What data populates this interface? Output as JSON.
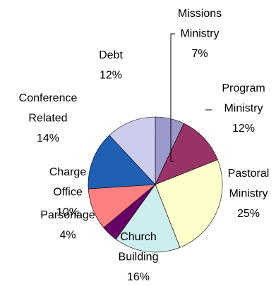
{
  "chart_data": {
    "type": "pie",
    "title": "",
    "slices": [
      {
        "label": [
          "Missions",
          "Ministry"
        ],
        "percent_label": "7%",
        "value": 7,
        "color": "#9999cc"
      },
      {
        "label": [
          "Program",
          "Ministry"
        ],
        "percent_label": "12%",
        "value": 12,
        "color": "#993366"
      },
      {
        "label": [
          "Pastoral",
          "Ministry"
        ],
        "percent_label": "25%",
        "value": 25,
        "color": "#ffffcc"
      },
      {
        "label": [
          "Church",
          "Building"
        ],
        "percent_label": "16%",
        "value": 16,
        "color": "#cceeee"
      },
      {
        "label": [
          "Parsonage"
        ],
        "percent_label": "4%",
        "value": 4,
        "color": "#660066"
      },
      {
        "label": [
          "Charge",
          "Office"
        ],
        "percent_label": "10%",
        "value": 10,
        "color": "#ff8080"
      },
      {
        "label": [
          "Conference",
          "Related"
        ],
        "percent_label": "14%",
        "value": 14,
        "color": "#1f5fb4"
      },
      {
        "label": [
          "Debt"
        ],
        "percent_label": "12%",
        "value": 12,
        "color": "#ccccee"
      }
    ]
  }
}
